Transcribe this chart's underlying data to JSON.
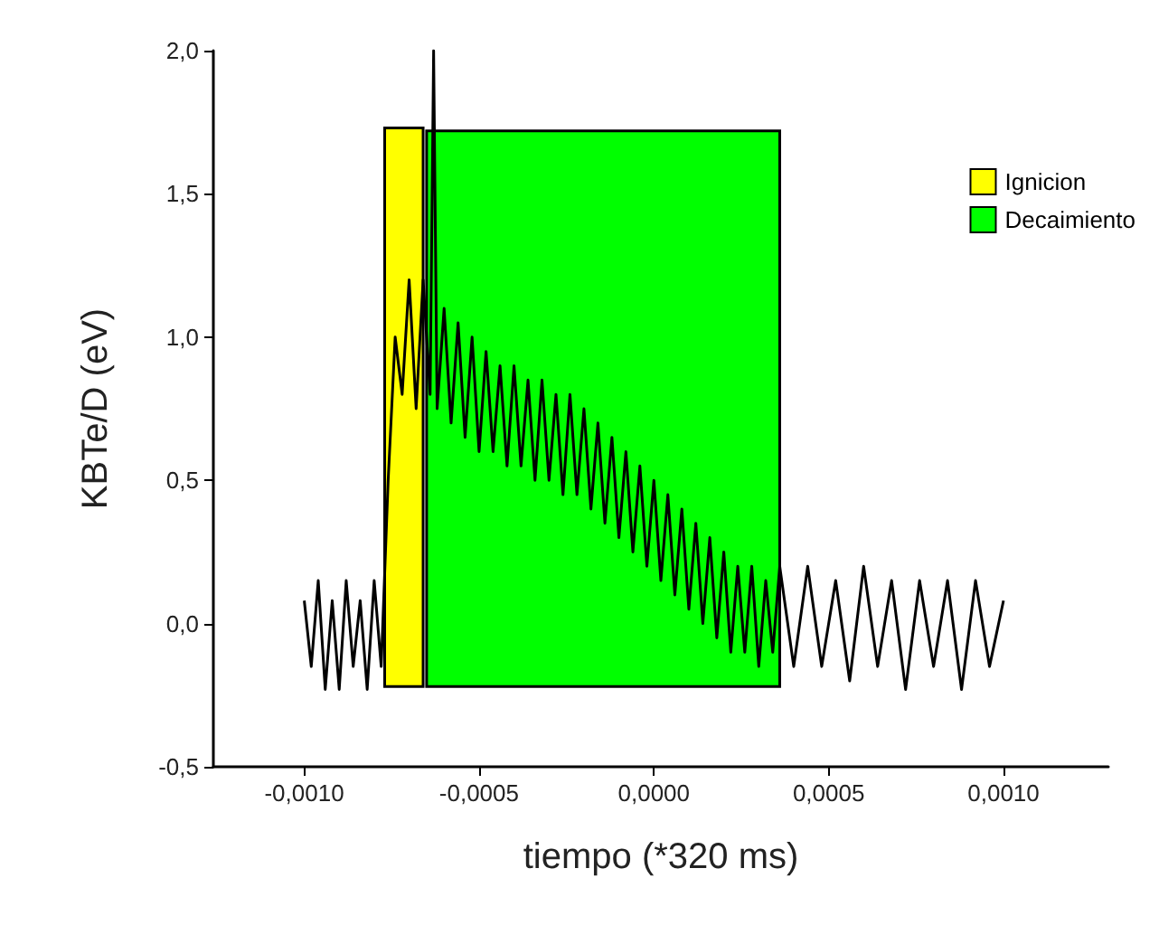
{
  "chart_data": {
    "type": "line",
    "xlabel": "tiempo (*320 ms)",
    "ylabel": "KBTe/D (eV)",
    "xlim": [
      -0.00126,
      0.0013
    ],
    "xticks": [
      {
        "value": -0.001,
        "label": "-0,0010"
      },
      {
        "value": -0.0005,
        "label": "-0,0005"
      },
      {
        "value": 0,
        "label": "0,0000"
      },
      {
        "value": 0.0005,
        "label": "0,0005"
      },
      {
        "value": 0.001,
        "label": "0,0010"
      }
    ],
    "ylim": [
      -0.5,
      2.0
    ],
    "yticks": [
      {
        "value": -0.5,
        "label": "-0,5"
      },
      {
        "value": 0,
        "label": "0,0"
      },
      {
        "value": 0.5,
        "label": "0,5"
      },
      {
        "value": 1.0,
        "label": "1,0"
      },
      {
        "value": 1.5,
        "label": "1,5"
      },
      {
        "value": 2.0,
        "label": "2,0"
      }
    ],
    "grid": false,
    "legend": "top right",
    "series": [
      {
        "type": "area",
        "name": "Ignicion",
        "color": "#ffff00",
        "x": [
          -0.00077,
          -0.00077,
          -0.00066,
          -0.00066
        ],
        "values": [
          -0.22,
          1.73,
          1.73,
          -0.22
        ]
      },
      {
        "type": "area",
        "name": "Decaimiento",
        "color": "#00ff00",
        "x": [
          -0.00065,
          -0.00065,
          0.00036,
          0.00036
        ],
        "values": [
          -0.22,
          1.72,
          1.72,
          -0.22
        ]
      },
      {
        "color": "#000000",
        "x": [
          -0.001,
          -0.00098,
          -0.00096,
          -0.00094,
          -0.00092,
          -0.0009,
          -0.00088,
          -0.00086,
          -0.00084,
          -0.00082,
          -0.0008,
          -0.00078,
          -0.00076,
          -0.00074,
          -0.00072,
          -0.0007,
          -0.00068,
          -0.00066,
          -0.00064,
          -0.00063,
          -0.00062,
          -0.0006,
          -0.00058,
          -0.00056,
          -0.00054,
          -0.00052,
          -0.0005,
          -0.00048,
          -0.00046,
          -0.00044,
          -0.00042,
          -0.0004,
          -0.00038,
          -0.00036,
          -0.00034,
          -0.00032,
          -0.0003,
          -0.00028,
          -0.00026,
          -0.00024,
          -0.00022,
          -0.0002,
          -0.00018,
          -0.00016,
          -0.00014,
          -0.00012,
          -0.0001,
          -8e-05,
          -6e-05,
          -4e-05,
          -2e-05,
          0,
          2e-05,
          4e-05,
          6e-05,
          8e-05,
          0.0001,
          0.00012,
          0.00014,
          0.00016,
          0.00018,
          0.0002,
          0.00022,
          0.00024,
          0.00026,
          0.00028,
          0.0003,
          0.00032,
          0.00034,
          0.00036,
          0.0004,
          0.00044,
          0.00048,
          0.00052,
          0.00056,
          0.0006,
          0.00064,
          0.00068,
          0.00072,
          0.00076,
          0.0008,
          0.00084,
          0.00088,
          0.00092,
          0.00096,
          0.001
        ],
        "values": [
          0.08,
          -0.15,
          0.15,
          -0.23,
          0.08,
          -0.23,
          0.15,
          -0.15,
          0.08,
          -0.23,
          0.15,
          -0.15,
          0.5,
          1.0,
          0.8,
          1.2,
          0.75,
          1.2,
          0.8,
          2.0,
          0.75,
          1.1,
          0.7,
          1.05,
          0.65,
          1.0,
          0.6,
          0.95,
          0.6,
          0.9,
          0.55,
          0.9,
          0.55,
          0.85,
          0.5,
          0.85,
          0.5,
          0.8,
          0.45,
          0.8,
          0.45,
          0.75,
          0.4,
          0.7,
          0.35,
          0.65,
          0.3,
          0.6,
          0.25,
          0.55,
          0.2,
          0.5,
          0.15,
          0.45,
          0.1,
          0.4,
          0.05,
          0.35,
          0.0,
          0.3,
          -0.05,
          0.25,
          -0.1,
          0.2,
          -0.1,
          0.2,
          -0.15,
          0.15,
          -0.1,
          0.2,
          -0.15,
          0.2,
          -0.15,
          0.15,
          -0.2,
          0.2,
          -0.15,
          0.15,
          -0.23,
          0.15,
          -0.15,
          0.15,
          -0.23,
          0.15,
          -0.15,
          0.08
        ]
      }
    ]
  }
}
